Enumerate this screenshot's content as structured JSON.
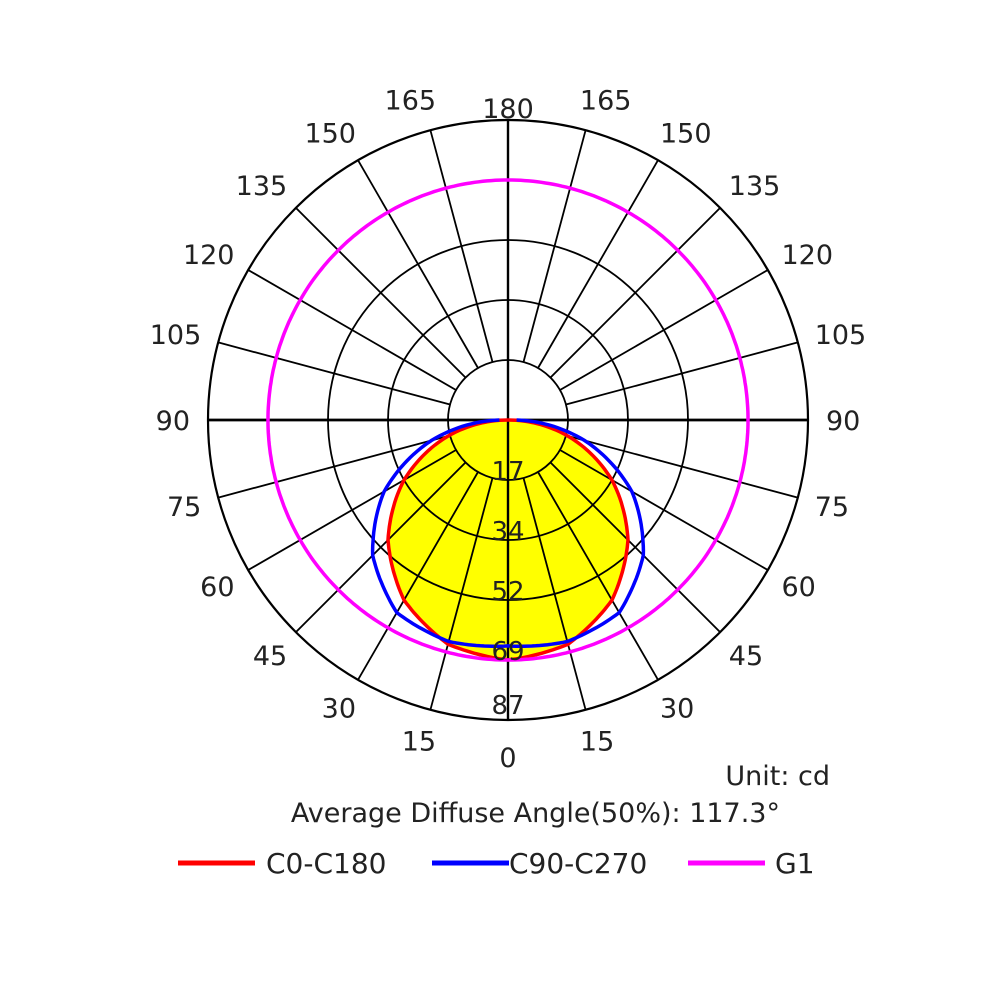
{
  "chart_data": {
    "type": "polar",
    "unit_text": "Unit: cd",
    "diffuse_angle_text": "Average Diffuse Angle(50%): 117.3°",
    "radial_ticks": [
      "17",
      "34",
      "52",
      "69",
      "87"
    ],
    "r_max": 87,
    "r_ring_step": 17.4,
    "angle_labels_left": [
      "0",
      "15",
      "30",
      "45",
      "60",
      "75",
      "90",
      "105",
      "120",
      "135",
      "150",
      "165",
      "180"
    ],
    "angle_labels_right": [
      "15",
      "30",
      "45",
      "60",
      "75",
      "90",
      "105",
      "120",
      "135",
      "150",
      "165"
    ],
    "area_fill_color": "#ffff00",
    "series": [
      {
        "name": "C0-C180",
        "color": "#ff0000",
        "angles": [
          0,
          15,
          30,
          45,
          60,
          75,
          90
        ],
        "values": [
          69.6,
          67.3,
          60.3,
          49.2,
          34.8,
          18.0,
          0
        ]
      },
      {
        "name": "C90-C270",
        "color": "#0000ff",
        "angles": [
          0,
          15,
          30,
          45,
          60,
          75,
          90
        ],
        "values": [
          65.5,
          66.5,
          64.5,
          55.5,
          41.5,
          23.0,
          2.5
        ]
      },
      {
        "name": "G1",
        "color": "#ff00ff",
        "angles": [
          0,
          15,
          30,
          45,
          60,
          75,
          90,
          105,
          120,
          135,
          150,
          165,
          180
        ],
        "values": [
          69.6,
          69.6,
          69.6,
          69.6,
          69.6,
          69.6,
          69.6,
          69.6,
          69.6,
          69.6,
          69.6,
          69.6,
          69.6
        ]
      }
    ]
  }
}
